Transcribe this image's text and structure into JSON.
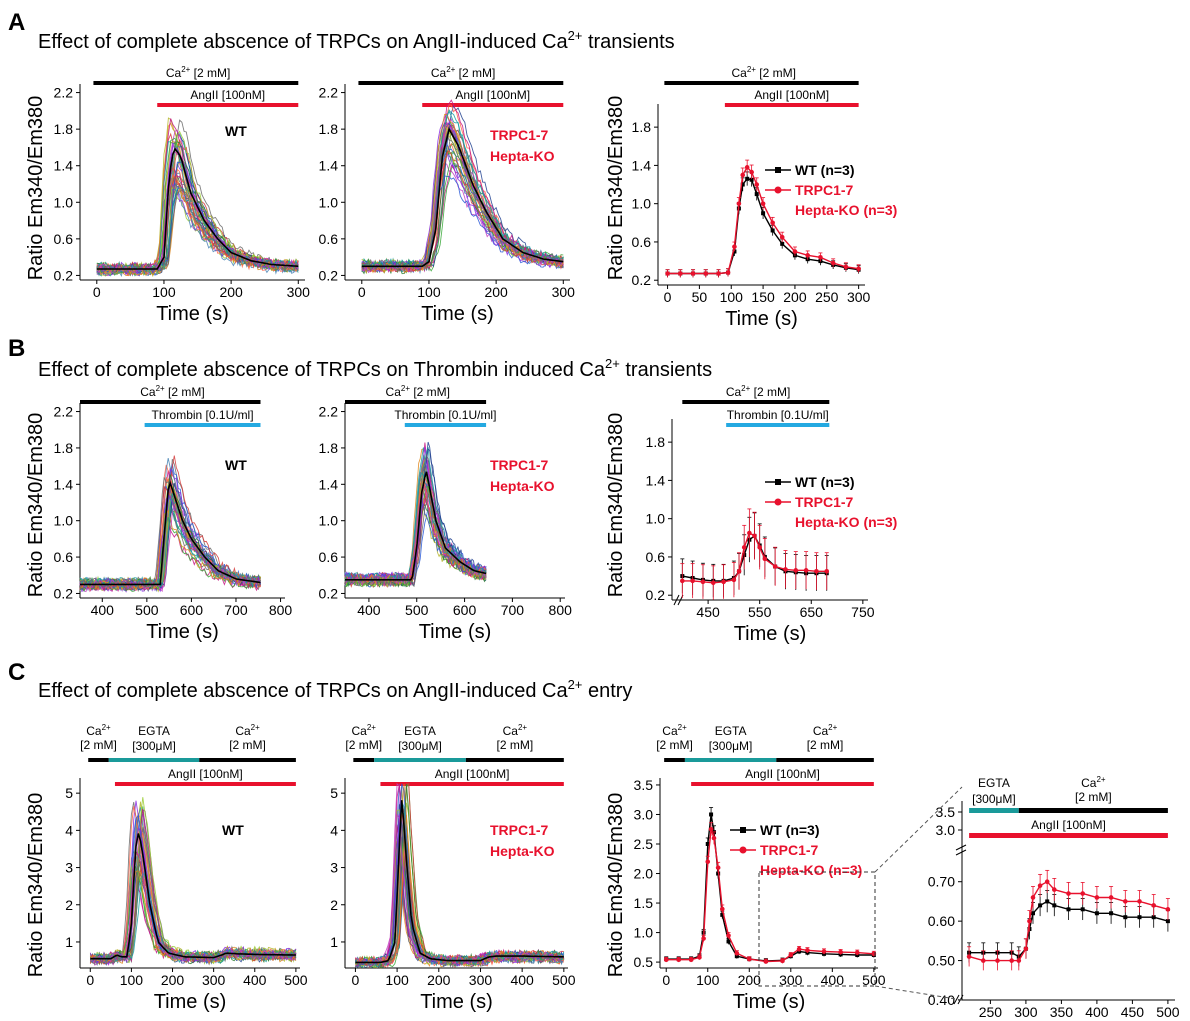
{
  "colors": {
    "black": "#000000",
    "red": "#e8112d",
    "blue": "#24a9e1",
    "teal": "#1a9a9a",
    "wt": "#000000",
    "ko": "#e8112d"
  },
  "sections": [
    {
      "letter": "A",
      "title_pre": "Effect of complete abscence of TRPCs on AngII-induced Ca",
      "title_sup": "2+",
      "title_post": " transients"
    },
    {
      "letter": "B",
      "title_pre": "Effect of complete abscence of TRPCs on Thrombin induced Ca",
      "title_sup": "2+",
      "title_post": " transients"
    },
    {
      "letter": "C",
      "title_pre": "Effect of complete abscence of TRPCs on AngII-induced Ca",
      "title_sup": "2+",
      "title_post": " entry"
    }
  ],
  "ylabel": "Ratio Em340/Em380",
  "xlabel": "Time (s)",
  "labels": {
    "wt": "WT",
    "ko_line1": "TRPC1-7",
    "ko_line2": "Hepta-KO",
    "legend_wt": "WT (n=3)",
    "legend_ko1": "TRPC1-7",
    "legend_ko2": "Hepta-KO (n=3)",
    "ca_2mm": "Ca",
    "ca_sup": "2+",
    "ca_conc": " [2 mM]",
    "ca_conc_c": "[2 mM]",
    "angii": "AngII [100nM]",
    "thrombin": "Thrombin [0.1U/ml]",
    "egta": "EGTA",
    "egta_conc": "[300μM]"
  },
  "chart_data": [
    {
      "id": "A1",
      "type": "line",
      "panel": "A",
      "genotype": "WT",
      "xlim": [
        -25,
        310
      ],
      "ylim": [
        0.15,
        2.25
      ],
      "xticks": [
        0,
        100,
        200,
        300
      ],
      "yticks": [
        0.2,
        0.6,
        1.0,
        1.4,
        1.8,
        2.2
      ],
      "traces": "single-cell traces (many)",
      "mean_x": [
        0,
        90,
        100,
        108,
        115,
        125,
        140,
        160,
        180,
        200,
        230,
        260,
        300
      ],
      "mean_y": [
        0.27,
        0.27,
        0.4,
        1.3,
        1.6,
        1.5,
        1.1,
        0.8,
        0.6,
        0.45,
        0.36,
        0.32,
        0.3
      ],
      "bars": [
        {
          "label": "Ca2+ [2 mM]",
          "from": -5,
          "to": 300
        },
        {
          "label": "AngII [100nM]",
          "from": 90,
          "to": 300
        }
      ]
    },
    {
      "id": "A2",
      "type": "line",
      "panel": "A",
      "genotype": "TRPC1-7 Hepta-KO",
      "xlim": [
        -25,
        310
      ],
      "ylim": [
        0.15,
        2.25
      ],
      "xticks": [
        0,
        100,
        200,
        300
      ],
      "yticks": [
        0.2,
        0.6,
        1.0,
        1.4,
        1.8,
        2.2
      ],
      "mean_x": [
        0,
        90,
        100,
        110,
        120,
        130,
        145,
        165,
        185,
        210,
        240,
        270,
        300
      ],
      "mean_y": [
        0.3,
        0.3,
        0.35,
        0.7,
        1.5,
        1.8,
        1.6,
        1.2,
        0.9,
        0.6,
        0.45,
        0.38,
        0.35
      ],
      "bars": [
        {
          "label": "Ca2+ [2 mM]",
          "from": -5,
          "to": 300
        },
        {
          "label": "AngII [100nM]",
          "from": 90,
          "to": 300
        }
      ]
    },
    {
      "id": "A3",
      "type": "line",
      "panel": "A",
      "xlim": [
        -15,
        310
      ],
      "ylim": [
        0.15,
        2.0
      ],
      "xticks": [
        0,
        50,
        100,
        150,
        200,
        250,
        300
      ],
      "yticks": [
        0.2,
        0.6,
        1.0,
        1.4,
        1.8
      ],
      "series": [
        {
          "name": "WT (n=3)",
          "x": [
            0,
            20,
            40,
            60,
            80,
            95,
            105,
            112,
            118,
            125,
            132,
            140,
            150,
            165,
            180,
            200,
            220,
            240,
            260,
            280,
            300
          ],
          "y": [
            0.27,
            0.27,
            0.27,
            0.27,
            0.27,
            0.28,
            0.5,
            0.95,
            1.2,
            1.26,
            1.25,
            1.1,
            0.9,
            0.72,
            0.58,
            0.46,
            0.42,
            0.4,
            0.36,
            0.33,
            0.31
          ]
        },
        {
          "name": "TRPC1-7 Hepta-KO (n=3)",
          "x": [
            0,
            20,
            40,
            60,
            80,
            95,
            105,
            112,
            118,
            125,
            132,
            140,
            150,
            165,
            180,
            200,
            220,
            240,
            260,
            280,
            300
          ],
          "y": [
            0.27,
            0.27,
            0.27,
            0.27,
            0.27,
            0.28,
            0.55,
            1.0,
            1.3,
            1.38,
            1.33,
            1.2,
            1.0,
            0.8,
            0.65,
            0.5,
            0.46,
            0.44,
            0.38,
            0.34,
            0.32
          ]
        }
      ],
      "bars": [
        {
          "label": "Ca2+ [2 mM]",
          "from": -5,
          "to": 300
        },
        {
          "label": "AngII [100nM]",
          "from": 90,
          "to": 300
        }
      ]
    },
    {
      "id": "B1",
      "type": "line",
      "panel": "B",
      "genotype": "WT",
      "xlim": [
        350,
        810
      ],
      "ylim": [
        0.15,
        2.25
      ],
      "xticks": [
        400,
        500,
        600,
        700,
        800
      ],
      "yticks": [
        0.2,
        0.6,
        1.0,
        1.4,
        1.8,
        2.2
      ],
      "mean_x": [
        350,
        450,
        530,
        540,
        550,
        560,
        580,
        600,
        630,
        660,
        700,
        755
      ],
      "mean_y": [
        0.3,
        0.3,
        0.3,
        0.9,
        1.45,
        1.3,
        1.0,
        0.8,
        0.6,
        0.45,
        0.36,
        0.32
      ],
      "bars": [
        {
          "label": "Ca2+ [2 mM]",
          "from": 350,
          "to": 755
        },
        {
          "label": "Thrombin [0.1U/ml]",
          "from": 495,
          "to": 755
        }
      ]
    },
    {
      "id": "B2",
      "type": "line",
      "panel": "B",
      "genotype": "TRPC1-7 Hepta-KO",
      "xlim": [
        350,
        810
      ],
      "ylim": [
        0.15,
        2.25
      ],
      "xticks": [
        400,
        500,
        600,
        700,
        800
      ],
      "yticks": [
        0.2,
        0.6,
        1.0,
        1.4,
        1.8,
        2.2
      ],
      "mean_x": [
        350,
        450,
        490,
        500,
        510,
        520,
        540,
        560,
        590,
        620,
        645
      ],
      "mean_y": [
        0.35,
        0.35,
        0.35,
        0.7,
        1.3,
        1.55,
        1.0,
        0.7,
        0.55,
        0.45,
        0.42
      ],
      "bars": [
        {
          "label": "Ca2+ [2 mM]",
          "from": 350,
          "to": 645
        },
        {
          "label": "Thrombin [0.1U/ml]",
          "from": 475,
          "to": 645
        }
      ]
    },
    {
      "id": "B3",
      "type": "line",
      "panel": "B",
      "xlim": [
        380,
        760
      ],
      "ylim": [
        0.15,
        2.0
      ],
      "xticks": [
        450,
        550,
        650,
        750
      ],
      "yticks": [
        0.2,
        0.6,
        1.0,
        1.4,
        1.8
      ],
      "series": [
        {
          "name": "WT (n=3)",
          "x": [
            400,
            420,
            440,
            460,
            480,
            500,
            510,
            520,
            530,
            540,
            550,
            560,
            580,
            600,
            620,
            640,
            660,
            680
          ],
          "y": [
            0.4,
            0.38,
            0.36,
            0.35,
            0.35,
            0.38,
            0.45,
            0.62,
            0.78,
            0.82,
            0.72,
            0.6,
            0.5,
            0.45,
            0.44,
            0.43,
            0.43,
            0.43
          ]
        },
        {
          "name": "TRPC1-7 Hepta-KO (n=3)",
          "x": [
            400,
            420,
            440,
            460,
            480,
            500,
            510,
            520,
            530,
            540,
            550,
            560,
            580,
            600,
            620,
            640,
            660,
            680
          ],
          "y": [
            0.35,
            0.35,
            0.34,
            0.33,
            0.34,
            0.36,
            0.45,
            0.7,
            0.85,
            0.82,
            0.7,
            0.58,
            0.5,
            0.47,
            0.46,
            0.46,
            0.45,
            0.45
          ]
        }
      ],
      "bars": [
        {
          "label": "Ca2+ [2 mM]",
          "from": 400,
          "to": 685
        },
        {
          "label": "Thrombin [0.1U/ml]",
          "from": 485,
          "to": 685
        }
      ]
    },
    {
      "id": "C1",
      "type": "line",
      "panel": "C",
      "genotype": "WT",
      "xlim": [
        -25,
        510
      ],
      "ylim": [
        0.3,
        5.3
      ],
      "xticks": [
        0,
        100,
        200,
        300,
        400,
        500
      ],
      "yticks": [
        1,
        2,
        3,
        4,
        5
      ],
      "mean_x": [
        0,
        50,
        65,
        75,
        90,
        100,
        110,
        118,
        130,
        145,
        165,
        190,
        230,
        300,
        320,
        330,
        360,
        420,
        500
      ],
      "mean_y": [
        0.55,
        0.55,
        0.65,
        0.6,
        0.6,
        1.5,
        3.5,
        4.0,
        3.2,
        2.0,
        1.0,
        0.7,
        0.6,
        0.58,
        0.65,
        0.7,
        0.68,
        0.66,
        0.65
      ],
      "bars": [
        {
          "label": "Ca2+ [2 mM]",
          "from": -5,
          "to": 45
        },
        {
          "label": "EGTA [300μM]",
          "from": 45,
          "to": 265
        },
        {
          "label": "Ca2+ [2 mM]",
          "from": 265,
          "to": 500
        },
        {
          "label": "AngII [100nM]",
          "from": 60,
          "to": 500
        }
      ]
    },
    {
      "id": "C2",
      "type": "line",
      "panel": "C",
      "genotype": "TRPC1-7 Hepta-KO",
      "xlim": [
        -25,
        510
      ],
      "ylim": [
        0.3,
        5.3
      ],
      "xticks": [
        0,
        100,
        200,
        300,
        400,
        500
      ],
      "yticks": [
        1,
        2,
        3,
        4,
        5
      ],
      "mean_x": [
        0,
        60,
        80,
        95,
        105,
        112,
        120,
        135,
        155,
        180,
        220,
        300,
        320,
        340,
        400,
        500
      ],
      "mean_y": [
        0.45,
        0.45,
        0.5,
        1.0,
        3.5,
        5.0,
        3.5,
        1.5,
        0.7,
        0.55,
        0.5,
        0.5,
        0.6,
        0.62,
        0.62,
        0.6
      ],
      "bars": [
        {
          "label": "Ca2+ [2 mM]",
          "from": -5,
          "to": 45
        },
        {
          "label": "EGTA [300μM]",
          "from": 45,
          "to": 265
        },
        {
          "label": "Ca2+ [2 mM]",
          "from": 265,
          "to": 500
        },
        {
          "label": "AngII [100nM]",
          "from": 60,
          "to": 500
        }
      ]
    },
    {
      "id": "C3",
      "type": "line",
      "panel": "C",
      "xlim": [
        -15,
        510
      ],
      "ylim": [
        0.4,
        3.55
      ],
      "xticks": [
        0,
        100,
        200,
        300,
        400,
        500
      ],
      "yticks": [
        0.5,
        1.0,
        1.5,
        2.0,
        2.5,
        3.0,
        3.5
      ],
      "series": [
        {
          "name": "WT (n=3)",
          "x": [
            0,
            30,
            60,
            80,
            90,
            100,
            108,
            115,
            125,
            135,
            150,
            170,
            200,
            240,
            280,
            300,
            320,
            340,
            380,
            420,
            460,
            500
          ],
          "y": [
            0.55,
            0.55,
            0.55,
            0.6,
            1.0,
            2.5,
            3.0,
            2.7,
            2.0,
            1.3,
            0.85,
            0.6,
            0.55,
            0.52,
            0.53,
            0.6,
            0.68,
            0.66,
            0.64,
            0.63,
            0.62,
            0.62
          ]
        },
        {
          "name": "TRPC1-7 Hepta-KO (n=3)",
          "x": [
            0,
            30,
            60,
            80,
            90,
            100,
            108,
            115,
            125,
            135,
            150,
            170,
            200,
            240,
            280,
            300,
            320,
            340,
            380,
            420,
            460,
            500
          ],
          "y": [
            0.54,
            0.54,
            0.54,
            0.58,
            0.9,
            2.2,
            2.75,
            2.6,
            2.1,
            1.4,
            0.95,
            0.65,
            0.55,
            0.51,
            0.52,
            0.62,
            0.72,
            0.7,
            0.68,
            0.67,
            0.66,
            0.64
          ]
        }
      ],
      "bars": [
        {
          "label": "Ca2+ [2 mM]",
          "from": -5,
          "to": 45
        },
        {
          "label": "EGTA [300μM]",
          "from": 45,
          "to": 265
        },
        {
          "label": "Ca2+ [2 mM]",
          "from": 265,
          "to": 500
        },
        {
          "label": "AngII [100nM]",
          "from": 60,
          "to": 500
        }
      ]
    },
    {
      "id": "C4",
      "type": "line",
      "panel": "C",
      "inset": "zoom of 210-500 s",
      "xlim": [
        210,
        510
      ],
      "ylim": [
        0.4,
        0.75
      ],
      "xticks": [
        250,
        300,
        350,
        400,
        450,
        500
      ],
      "yticks": [
        0.4,
        0.5,
        0.6,
        0.7
      ],
      "yticks_break": [
        3.0,
        3.5
      ],
      "series": [
        {
          "name": "WT (n=3)",
          "x": [
            220,
            240,
            260,
            280,
            290,
            300,
            305,
            310,
            320,
            330,
            340,
            360,
            380,
            400,
            420,
            440,
            460,
            480,
            500
          ],
          "y": [
            0.52,
            0.52,
            0.52,
            0.52,
            0.51,
            0.53,
            0.58,
            0.62,
            0.64,
            0.65,
            0.64,
            0.63,
            0.63,
            0.62,
            0.62,
            0.61,
            0.61,
            0.61,
            0.6
          ]
        },
        {
          "name": "TRPC1-7 Hepta-KO (n=3)",
          "x": [
            220,
            240,
            260,
            280,
            290,
            300,
            305,
            310,
            320,
            330,
            340,
            360,
            380,
            400,
            420,
            440,
            460,
            480,
            500
          ],
          "y": [
            0.51,
            0.5,
            0.5,
            0.5,
            0.5,
            0.53,
            0.6,
            0.66,
            0.69,
            0.7,
            0.68,
            0.67,
            0.67,
            0.66,
            0.66,
            0.65,
            0.65,
            0.64,
            0.63
          ]
        }
      ],
      "bars": [
        {
          "label": "EGTA [300μM]",
          "from": 220,
          "to": 290
        },
        {
          "label": "Ca2+ [2 mM]",
          "from": 290,
          "to": 500
        },
        {
          "label": "AngII [100nM]",
          "from": 220,
          "to": 500
        }
      ]
    }
  ]
}
